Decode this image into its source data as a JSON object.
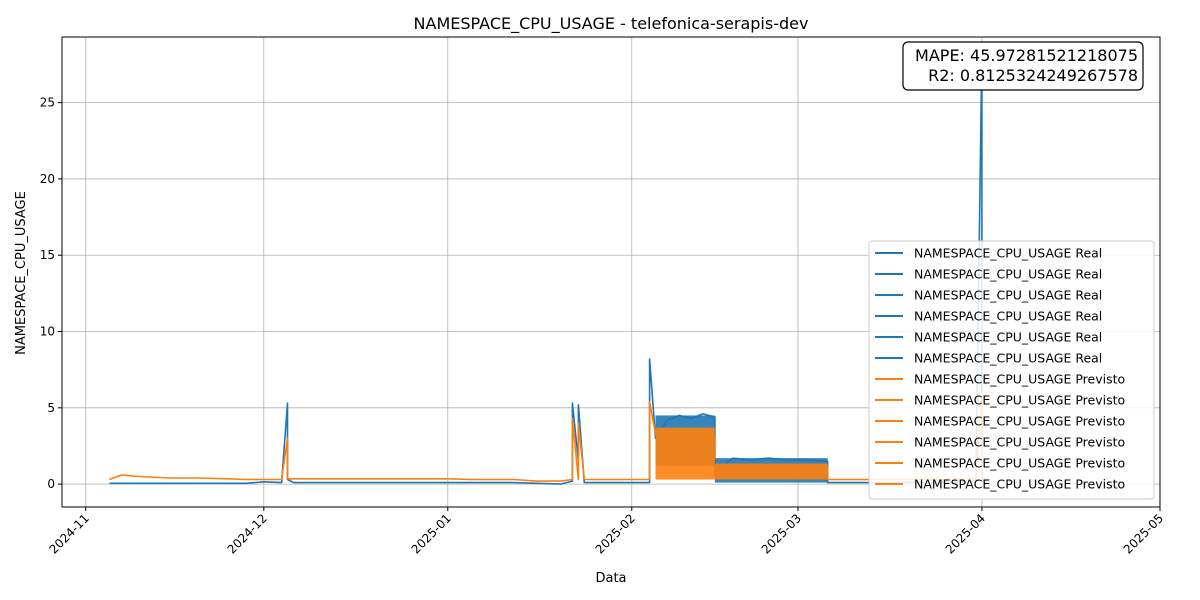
{
  "chart_data": {
    "type": "line",
    "title": "NAMESPACE_CPU_USAGE - telefonica-serapis-dev",
    "xlabel": "Data",
    "ylabel": "NAMESPACE_CPU_USAGE",
    "x_type": "date",
    "xlim": [
      "2024-10-28",
      "2025-05-01"
    ],
    "ylim": [
      -1.5,
      29.3
    ],
    "x_ticks": [
      "2024-11-01",
      "2024-12-01",
      "2025-01-01",
      "2025-02-01",
      "2025-03-01",
      "2025-04-01",
      "2025-05-01"
    ],
    "x_tick_labels": [
      "2024-11",
      "2024-12",
      "2025-01",
      "2025-02",
      "2025-03",
      "2025-04",
      "2025-05"
    ],
    "y_ticks": [
      0,
      5,
      10,
      15,
      20,
      25
    ],
    "y_tick_labels": [
      "0",
      "5",
      "10",
      "15",
      "20",
      "25"
    ],
    "grid": true,
    "legend_position": "lower-right",
    "metrics_box": {
      "position": "top-right",
      "mape_line": "MAPE: 45.97281521218075",
      "r2_line": "R2: 0.8125324249267578"
    },
    "legend": [
      {
        "label": "NAMESPACE_CPU_USAGE Real",
        "color": "#1f77b4"
      },
      {
        "label": "NAMESPACE_CPU_USAGE Real",
        "color": "#1f77b4"
      },
      {
        "label": "NAMESPACE_CPU_USAGE Real",
        "color": "#1f77b4"
      },
      {
        "label": "NAMESPACE_CPU_USAGE Real",
        "color": "#1f77b4"
      },
      {
        "label": "NAMESPACE_CPU_USAGE Real",
        "color": "#1f77b4"
      },
      {
        "label": "NAMESPACE_CPU_USAGE Real",
        "color": "#1f77b4"
      },
      {
        "label": "NAMESPACE_CPU_USAGE Previsto",
        "color": "#ff7f0e"
      },
      {
        "label": "NAMESPACE_CPU_USAGE Previsto",
        "color": "#ff7f0e"
      },
      {
        "label": "NAMESPACE_CPU_USAGE Previsto",
        "color": "#ff7f0e"
      },
      {
        "label": "NAMESPACE_CPU_USAGE Previsto",
        "color": "#ff7f0e"
      },
      {
        "label": "NAMESPACE_CPU_USAGE Previsto",
        "color": "#ff7f0e"
      },
      {
        "label": "NAMESPACE_CPU_USAGE Previsto",
        "color": "#ff7f0e"
      }
    ],
    "series": [
      {
        "kind": "real",
        "color": "#1f77b4",
        "x": [
          "2024-11-05",
          "2024-11-07",
          "2024-11-10",
          "2024-11-15",
          "2024-11-20",
          "2024-11-25",
          "2024-11-28",
          "2024-12-01",
          "2024-12-04",
          "2024-12-05",
          "2024-12-05",
          "2024-12-06",
          "2024-12-10",
          "2024-12-15",
          "2024-12-20",
          "2024-12-27",
          "2025-01-01",
          "2025-01-05",
          "2025-01-08",
          "2025-01-12",
          "2025-01-16",
          "2025-01-20",
          "2025-01-22",
          "2025-01-22",
          "2025-01-23",
          "2025-01-23",
          "2025-01-24",
          "2025-01-28",
          "2025-02-01",
          "2025-02-04",
          "2025-02-04",
          "2025-02-05",
          "2025-02-07",
          "2025-02-09",
          "2025-02-11",
          "2025-02-13",
          "2025-02-15",
          "2025-02-15",
          "2025-02-18",
          "2025-02-21",
          "2025-02-24",
          "2025-02-27",
          "2025-03-02",
          "2025-03-06",
          "2025-03-06",
          "2025-03-10",
          "2025-03-15",
          "2025-03-20",
          "2025-03-25",
          "2025-03-31",
          "2025-04-01",
          "2025-04-01",
          "2025-04-02"
        ],
        "y": [
          0.05,
          0.05,
          0.05,
          0.05,
          0.05,
          0.05,
          0.05,
          0.15,
          0.1,
          5.3,
          0.3,
          0.1,
          0.1,
          0.1,
          0.1,
          0.1,
          0.1,
          0.1,
          0.1,
          0.1,
          0.05,
          0.0,
          0.2,
          5.3,
          1.5,
          5.2,
          0.1,
          0.1,
          0.1,
          0.1,
          8.2,
          3.0,
          4.2,
          4.5,
          4.3,
          4.6,
          4.4,
          0.8,
          1.7,
          1.6,
          1.7,
          1.6,
          1.6,
          1.5,
          0.1,
          0.1,
          0.1,
          0.1,
          0.1,
          0.2,
          28.5,
          0.2,
          0.2
        ]
      },
      {
        "kind": "predicted",
        "color": "#ff7f0e",
        "x": [
          "2024-11-05",
          "2024-11-07",
          "2024-11-10",
          "2024-11-15",
          "2024-11-20",
          "2024-11-25",
          "2024-11-28",
          "2024-12-01",
          "2024-12-04",
          "2024-12-05",
          "2024-12-05",
          "2024-12-06",
          "2024-12-10",
          "2024-12-15",
          "2024-12-20",
          "2024-12-27",
          "2025-01-01",
          "2025-01-05",
          "2025-01-08",
          "2025-01-12",
          "2025-01-16",
          "2025-01-20",
          "2025-01-22",
          "2025-01-22",
          "2025-01-23",
          "2025-01-23",
          "2025-01-24",
          "2025-01-28",
          "2025-02-01",
          "2025-02-04",
          "2025-02-04",
          "2025-02-05",
          "2025-02-07",
          "2025-02-09",
          "2025-02-11",
          "2025-02-13",
          "2025-02-15",
          "2025-02-15",
          "2025-02-18",
          "2025-02-21",
          "2025-02-24",
          "2025-02-27",
          "2025-03-02",
          "2025-03-06",
          "2025-03-06",
          "2025-03-10",
          "2025-03-15",
          "2025-03-20",
          "2025-03-25",
          "2025-03-31",
          "2025-04-01",
          "2025-04-01",
          "2025-04-02"
        ],
        "y": [
          0.3,
          0.6,
          0.5,
          0.4,
          0.4,
          0.35,
          0.3,
          0.3,
          0.3,
          3.0,
          0.35,
          0.35,
          0.35,
          0.35,
          0.35,
          0.35,
          0.35,
          0.3,
          0.3,
          0.3,
          0.2,
          0.2,
          0.3,
          4.3,
          0.3,
          4.0,
          0.3,
          0.3,
          0.3,
          0.3,
          5.4,
          3.3,
          3.2,
          3.1,
          3.3,
          3.2,
          3.1,
          0.5,
          1.1,
          1.2,
          1.3,
          1.2,
          1.2,
          1.1,
          0.3,
          0.3,
          0.3,
          0.3,
          0.3,
          0.4,
          6.0,
          0.4,
          0.3
        ]
      },
      {
        "kind": "real-band",
        "color": "#1f77b4",
        "x": [
          "2025-02-05",
          "2025-02-15"
        ],
        "y_low": [
          1.2,
          1.2
        ],
        "y_high": [
          4.5,
          4.5
        ]
      },
      {
        "kind": "predicted-band",
        "color": "#ff7f0e",
        "x": [
          "2025-02-05",
          "2025-02-15"
        ],
        "y_low": [
          0.3,
          0.3
        ],
        "y_high": [
          3.7,
          3.7
        ]
      },
      {
        "kind": "real-band",
        "color": "#1f77b4",
        "x": [
          "2025-02-15",
          "2025-03-06"
        ],
        "y_low": [
          0.1,
          0.1
        ],
        "y_high": [
          1.7,
          1.7
        ]
      },
      {
        "kind": "predicted-band",
        "color": "#ff7f0e",
        "x": [
          "2025-02-15",
          "2025-03-06"
        ],
        "y_low": [
          0.3,
          0.3
        ],
        "y_high": [
          1.35,
          1.35
        ]
      }
    ]
  }
}
